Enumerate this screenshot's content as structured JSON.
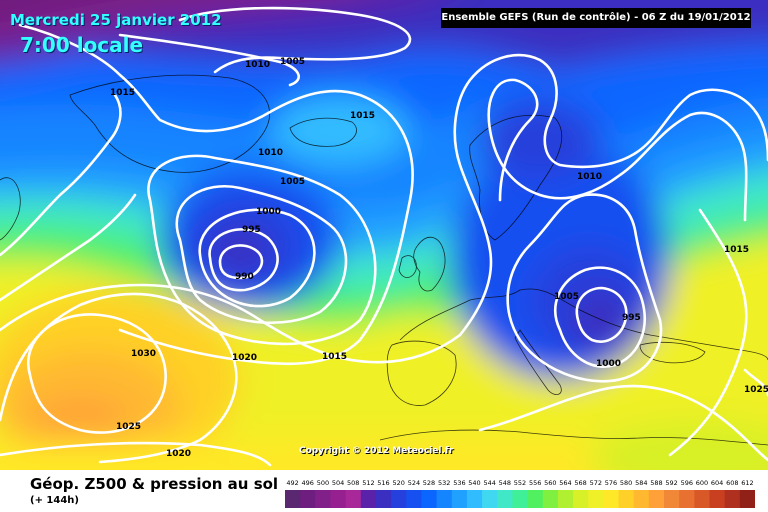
{
  "header": {
    "date": "Mercredi 25 janvier 2012",
    "time": "7:00 locale",
    "run_info": "Ensemble GEFS (Run de contrôle)  -  06 Z du 19/01/2012"
  },
  "footer": {
    "product_title": "Géop. Z500 & pression au sol",
    "forecast_step": "(+ 144h)",
    "copyright": "Copyright © 2012 Meteociel.fr"
  },
  "legend": {
    "values": [
      "492",
      "496",
      "500",
      "504",
      "508",
      "512",
      "516",
      "520",
      "524",
      "528",
      "532",
      "536",
      "540",
      "544",
      "548",
      "552",
      "556",
      "560",
      "564",
      "568",
      "572",
      "576",
      "580",
      "584",
      "588",
      "592",
      "596",
      "600",
      "604",
      "608",
      "612"
    ],
    "colors": [
      "#5a2870",
      "#6e1e7e",
      "#82208a",
      "#96208f",
      "#a8289a",
      "#5a22a8",
      "#3a2fc0",
      "#2540dc",
      "#1650f0",
      "#0a66ff",
      "#1584ff",
      "#20a0ff",
      "#30bcff",
      "#40d8f0",
      "#40e8c8",
      "#40f098",
      "#50f060",
      "#80f040",
      "#b0f030",
      "#d8f028",
      "#f0f028",
      "#ffe828",
      "#ffd028",
      "#ffb830",
      "#ffa038",
      "#f08838",
      "#e87030",
      "#d85828",
      "#c84020",
      "#b03020",
      "#902018"
    ]
  },
  "map": {
    "pressure_labels": [
      "1010",
      "1005",
      "1015",
      "1015",
      "1010",
      "1005",
      "1000",
      "995",
      "990",
      "1010",
      "1015",
      "1005",
      "995",
      "1000",
      "1030",
      "1020",
      "1015",
      "1025",
      "1020",
      "1025"
    ]
  }
}
